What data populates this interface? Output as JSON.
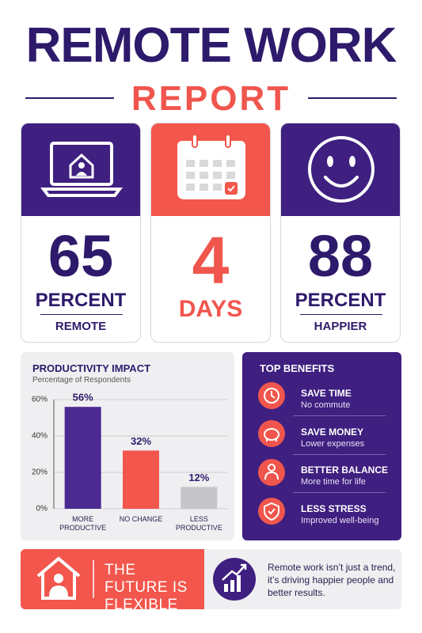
{
  "header": {
    "title": "REMOTE WORK",
    "subtitle": "REPORT"
  },
  "stats": [
    {
      "value": 65,
      "unit": "PERCENT",
      "label": "REMOTE"
    },
    {
      "value": 4,
      "unit": "DAYS"
    },
    {
      "value": 88,
      "unit": "PERCENT",
      "label": "HAPPIER"
    }
  ],
  "chart_data": {
    "type": "bar",
    "title": "PRODUCTIVITY IMPACT",
    "subtitle": "Percentage of Respondents",
    "categories": [
      "MORE PRODUCTIVE",
      "NO CHANGE",
      "LESS PRODUCTIVE"
    ],
    "values": [
      56,
      32,
      12
    ],
    "value_labels": [
      "56%",
      "32%",
      "12%"
    ],
    "colors": [
      "#4b2a91",
      "#f2564c",
      "#c6c6c8"
    ],
    "ylim": [
      0,
      60
    ],
    "yticks": [
      {
        "value": 0,
        "label": "0%"
      },
      {
        "value": 20,
        "label": "20%"
      },
      {
        "value": 40,
        "label": "40%"
      },
      {
        "value": 60,
        "label": "60%"
      }
    ],
    "grid": true
  },
  "benefits": {
    "title": "TOP BENEFITS",
    "items": [
      {
        "title": "SAVE TIME",
        "text": "No commute"
      },
      {
        "title": "SAVE MONEY",
        "text": "Lower expenses"
      },
      {
        "title": "BETTER BALANCE",
        "text": "More time for life"
      },
      {
        "title": "LESS STRESS",
        "text": "Improved well-being"
      }
    ]
  },
  "footer": {
    "headline": "THE FUTURE IS FLEXIBLE",
    "text": "Remote work isn’t just a trend, it’s driving happier people and better results."
  }
}
